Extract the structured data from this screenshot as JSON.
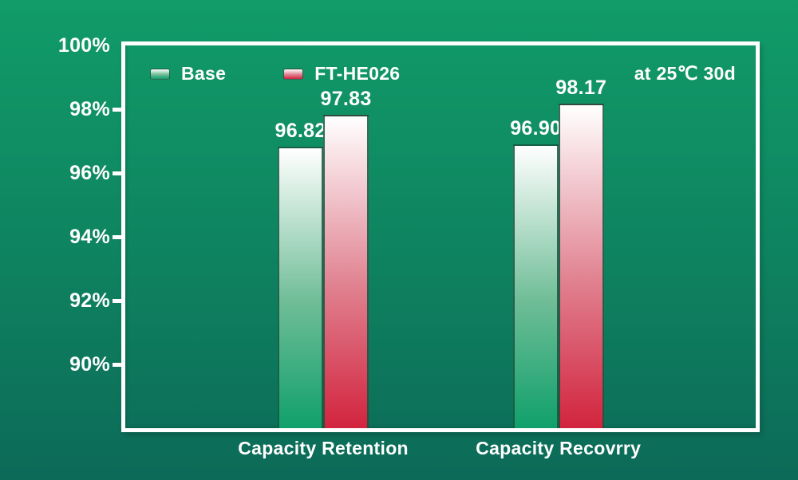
{
  "chart_data": {
    "type": "bar",
    "title": "",
    "categories": [
      "Capacity Retention",
      "Capacity Recovrry"
    ],
    "series": [
      {
        "name": "Base",
        "values": [
          96.82,
          96.9
        ],
        "bar_gradient_top": "#ffffff",
        "bar_gradient_mid": "#6fbd97",
        "bar_gradient_bottom": "#10a06b"
      },
      {
        "name": "FT-HE026",
        "values": [
          97.83,
          98.17
        ],
        "bar_gradient_top": "#ffffff",
        "bar_gradient_mid": "#e0808f",
        "bar_gradient_bottom": "#d2243e"
      }
    ],
    "y_ticks": [
      "100%",
      "98%",
      "96%",
      "94%",
      "92%",
      "90%"
    ],
    "y_tick_values": [
      100,
      98,
      96,
      94,
      92,
      90
    ],
    "ylim": [
      88,
      100
    ],
    "xlabel": "",
    "ylabel": "",
    "annotation": "at 25℃ 30d",
    "value_label_format": "fixed2",
    "legend_position": "top-left-inside",
    "grid": false,
    "colors": {
      "background_top": "#119c69",
      "background_bottom": "#0c6a58",
      "axis_and_text": "#ffffff",
      "bar_border": "#15543e",
      "base_bar_bottom": "#10a06b",
      "ft_he026_bar_bottom": "#d2243e"
    }
  }
}
